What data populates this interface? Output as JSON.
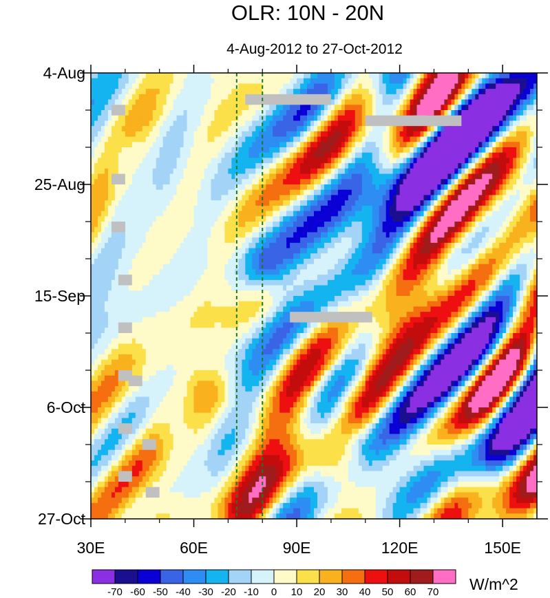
{
  "chart_data": {
    "type": "heatmap",
    "title": "OLR: 10N - 20N",
    "subtitle": "4-Aug-2012 to 27-Oct-2012",
    "x_axis": {
      "range": [
        30,
        160
      ],
      "ticks": [
        {
          "value": 30,
          "label": "30E"
        },
        {
          "value": 60,
          "label": "60E"
        },
        {
          "value": 90,
          "label": "90E"
        },
        {
          "value": 120,
          "label": "120E"
        },
        {
          "value": 150,
          "label": "150E"
        }
      ]
    },
    "y_axis": {
      "range": [
        "2012-08-04",
        "2012-10-27"
      ],
      "direction": "top-to-bottom",
      "ticks": [
        {
          "date": "2012-08-04",
          "label": "4-Aug"
        },
        {
          "date": "2012-08-25",
          "label": "25-Aug"
        },
        {
          "date": "2012-09-15",
          "label": "15-Sep"
        },
        {
          "date": "2012-10-06",
          "label": "6-Oct"
        },
        {
          "date": "2012-10-27",
          "label": "27-Oct"
        }
      ]
    },
    "reference_lines": [
      {
        "longitude": 72.5,
        "style": "dashed",
        "color": "#1a7a2a"
      },
      {
        "longitude": 80,
        "style": "dashed",
        "color": "#1a7a2a"
      }
    ],
    "colorbar": {
      "unit": "W/m^2",
      "levels": [
        "-70",
        "-60",
        "-50",
        "-40",
        "-30",
        "-20",
        "-10",
        "0",
        "10",
        "20",
        "30",
        "40",
        "50",
        "60",
        "70"
      ],
      "colors": [
        "#8b2fe3",
        "#1a0f8f",
        "#0a00d6",
        "#3a64e6",
        "#2e8df2",
        "#14b4f0",
        "#a3d4f8",
        "#d6f3fb",
        "#fffbc8",
        "#fbe04a",
        "#f9b11d",
        "#f56f10",
        "#ee1010",
        "#c30d0d",
        "#a01c1c",
        "#ff6ec4"
      ]
    },
    "missing_data_boxes": [
      {
        "lon": [
          36,
          40
        ],
        "date": [
          "2012-08-10",
          "2012-08-12"
        ]
      },
      {
        "lon": [
          36,
          40
        ],
        "date": [
          "2012-08-23",
          "2012-08-25"
        ]
      },
      {
        "lon": [
          36,
          40
        ],
        "date": [
          "2012-09-01",
          "2012-09-03"
        ]
      },
      {
        "lon": [
          38,
          42
        ],
        "date": [
          "2012-09-11",
          "2012-09-13"
        ]
      },
      {
        "lon": [
          38,
          42
        ],
        "date": [
          "2012-09-20",
          "2012-09-22"
        ]
      },
      {
        "lon": [
          38,
          42
        ],
        "date": [
          "2012-09-29",
          "2012-10-01"
        ]
      },
      {
        "lon": [
          41,
          45
        ],
        "date": [
          "2012-09-30",
          "2012-10-02"
        ]
      },
      {
        "lon": [
          38,
          42
        ],
        "date": [
          "2012-10-09",
          "2012-10-11"
        ]
      },
      {
        "lon": [
          45,
          49
        ],
        "date": [
          "2012-10-12",
          "2012-10-14"
        ]
      },
      {
        "lon": [
          38,
          42
        ],
        "date": [
          "2012-10-18",
          "2012-10-20"
        ]
      },
      {
        "lon": [
          46,
          50
        ],
        "date": [
          "2012-10-21",
          "2012-10-23"
        ]
      },
      {
        "lon": [
          75,
          100
        ],
        "date": [
          "2012-08-08",
          "2012-08-10"
        ]
      },
      {
        "lon": [
          110,
          138
        ],
        "date": [
          "2012-08-12",
          "2012-08-14"
        ]
      },
      {
        "lon": [
          88,
          112
        ],
        "date": [
          "2012-09-18",
          "2012-09-20"
        ]
      }
    ],
    "field_description": {
      "anomaly_bands": [
        {
          "sign": "positive",
          "from": {
            "lon": 75,
            "date": "2012-10-27"
          },
          "to": {
            "lon": 160,
            "date": "2012-08-30"
          }
        },
        {
          "sign": "negative",
          "from": {
            "lon": 85,
            "date": "2012-09-10"
          },
          "to": {
            "lon": 160,
            "date": "2012-08-04"
          }
        },
        {
          "sign": "negative",
          "from": {
            "lon": 110,
            "date": "2012-10-12"
          },
          "to": {
            "lon": 160,
            "date": "2012-09-20"
          }
        },
        {
          "sign": "positive",
          "from": {
            "lon": 30,
            "date": "2012-10-27"
          },
          "to": {
            "lon": 60,
            "date": "2012-10-03"
          }
        },
        {
          "sign": "near-zero",
          "from": {
            "lon": 42,
            "date": "2012-08-20"
          },
          "to": {
            "lon": 60,
            "date": "2012-10-27"
          }
        }
      ]
    }
  }
}
